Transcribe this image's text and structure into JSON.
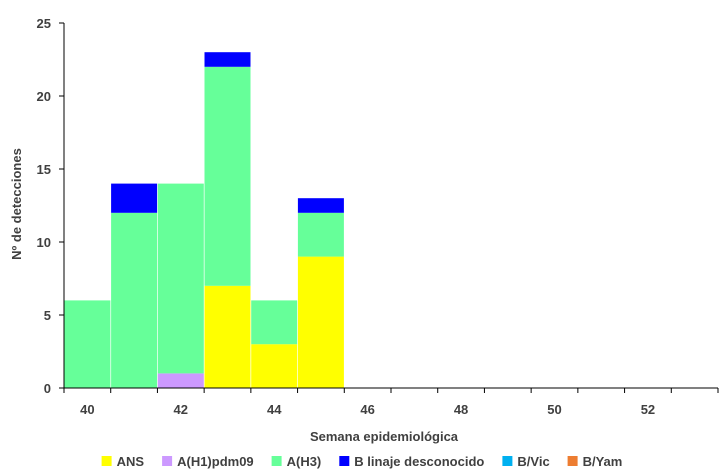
{
  "chart_data": {
    "type": "bar",
    "stacked": true,
    "title": "",
    "xlabel": "Semana epidemiológica",
    "ylabel": "Nº de detecciones",
    "ylim": [
      0,
      25
    ],
    "yticks": [
      0,
      5,
      10,
      15,
      20,
      25
    ],
    "xlim": [
      39.5,
      53.5
    ],
    "xticks": [
      40,
      42,
      44,
      46,
      48,
      50,
      52
    ],
    "categories": [
      40,
      41,
      42,
      43,
      44,
      45
    ],
    "grid": false,
    "legend_position": "bottom",
    "series": [
      {
        "name": "ANS",
        "color": "#FFFF00",
        "values": [
          0,
          0,
          0,
          7,
          3,
          9
        ]
      },
      {
        "name": "A(H1)pdm09",
        "color": "#CC99FF",
        "values": [
          0,
          0,
          1,
          0,
          0,
          0
        ]
      },
      {
        "name": "A(H3)",
        "color": "#66FF99",
        "values": [
          6,
          12,
          13,
          15,
          3,
          3
        ]
      },
      {
        "name": "B linaje desconocido",
        "color": "#0000FF",
        "values": [
          0,
          2,
          0,
          1,
          0,
          1
        ]
      },
      {
        "name": "B/Vic",
        "color": "#00B0F0",
        "values": [
          0,
          0,
          0,
          0,
          0,
          0
        ]
      },
      {
        "name": "B/Yam",
        "color": "#ED7D31",
        "values": [
          0,
          0,
          0,
          0,
          0,
          0
        ]
      }
    ]
  }
}
